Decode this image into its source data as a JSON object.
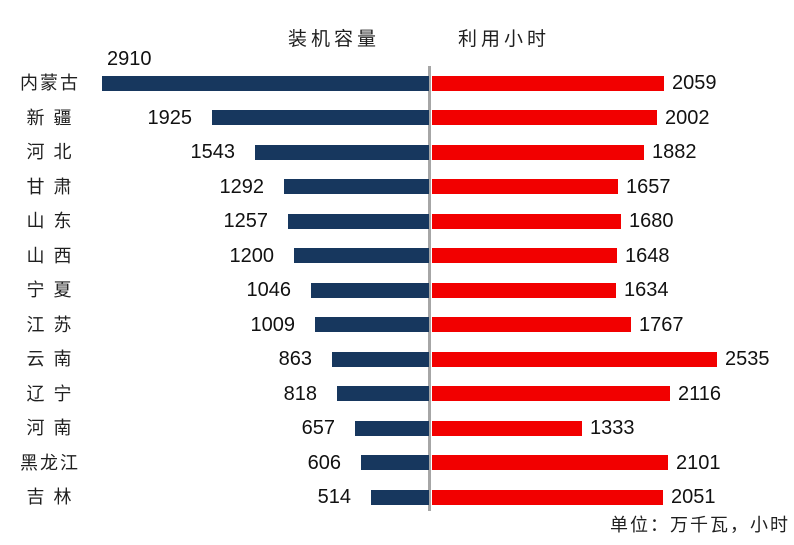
{
  "colors": {
    "capacity_bar": "#17375E",
    "hours_bar": "#F20000",
    "axis_line": "#A6A6A6"
  },
  "chart_data": {
    "type": "bar",
    "orientation": "diverging-horizontal",
    "title": "",
    "categories": [
      "内蒙古",
      "新 疆",
      "河 北",
      "甘 肃",
      "山 东",
      "山 西",
      "宁 夏",
      "江 苏",
      "云 南",
      "辽 宁",
      "河 南",
      "黑龙江",
      "吉 林"
    ],
    "series": [
      {
        "name": "装机容量",
        "direction": "left",
        "color": "#17375E",
        "values": [
          2910,
          1925,
          1543,
          1292,
          1257,
          1200,
          1046,
          1009,
          863,
          818,
          657,
          606,
          514
        ]
      },
      {
        "name": "利用小时",
        "direction": "right",
        "color": "#F20000",
        "values": [
          2059,
          2002,
          1882,
          1657,
          1680,
          1648,
          1634,
          1767,
          2535,
          2116,
          1333,
          2101,
          2051
        ]
      }
    ],
    "unit_note": "单位：万千瓦，小时",
    "value_labels": "outside-end",
    "legend_position": "top-inline-titles",
    "grid": false,
    "axis_ranges": {
      "left_max": 2910,
      "right_max": 2535
    }
  }
}
